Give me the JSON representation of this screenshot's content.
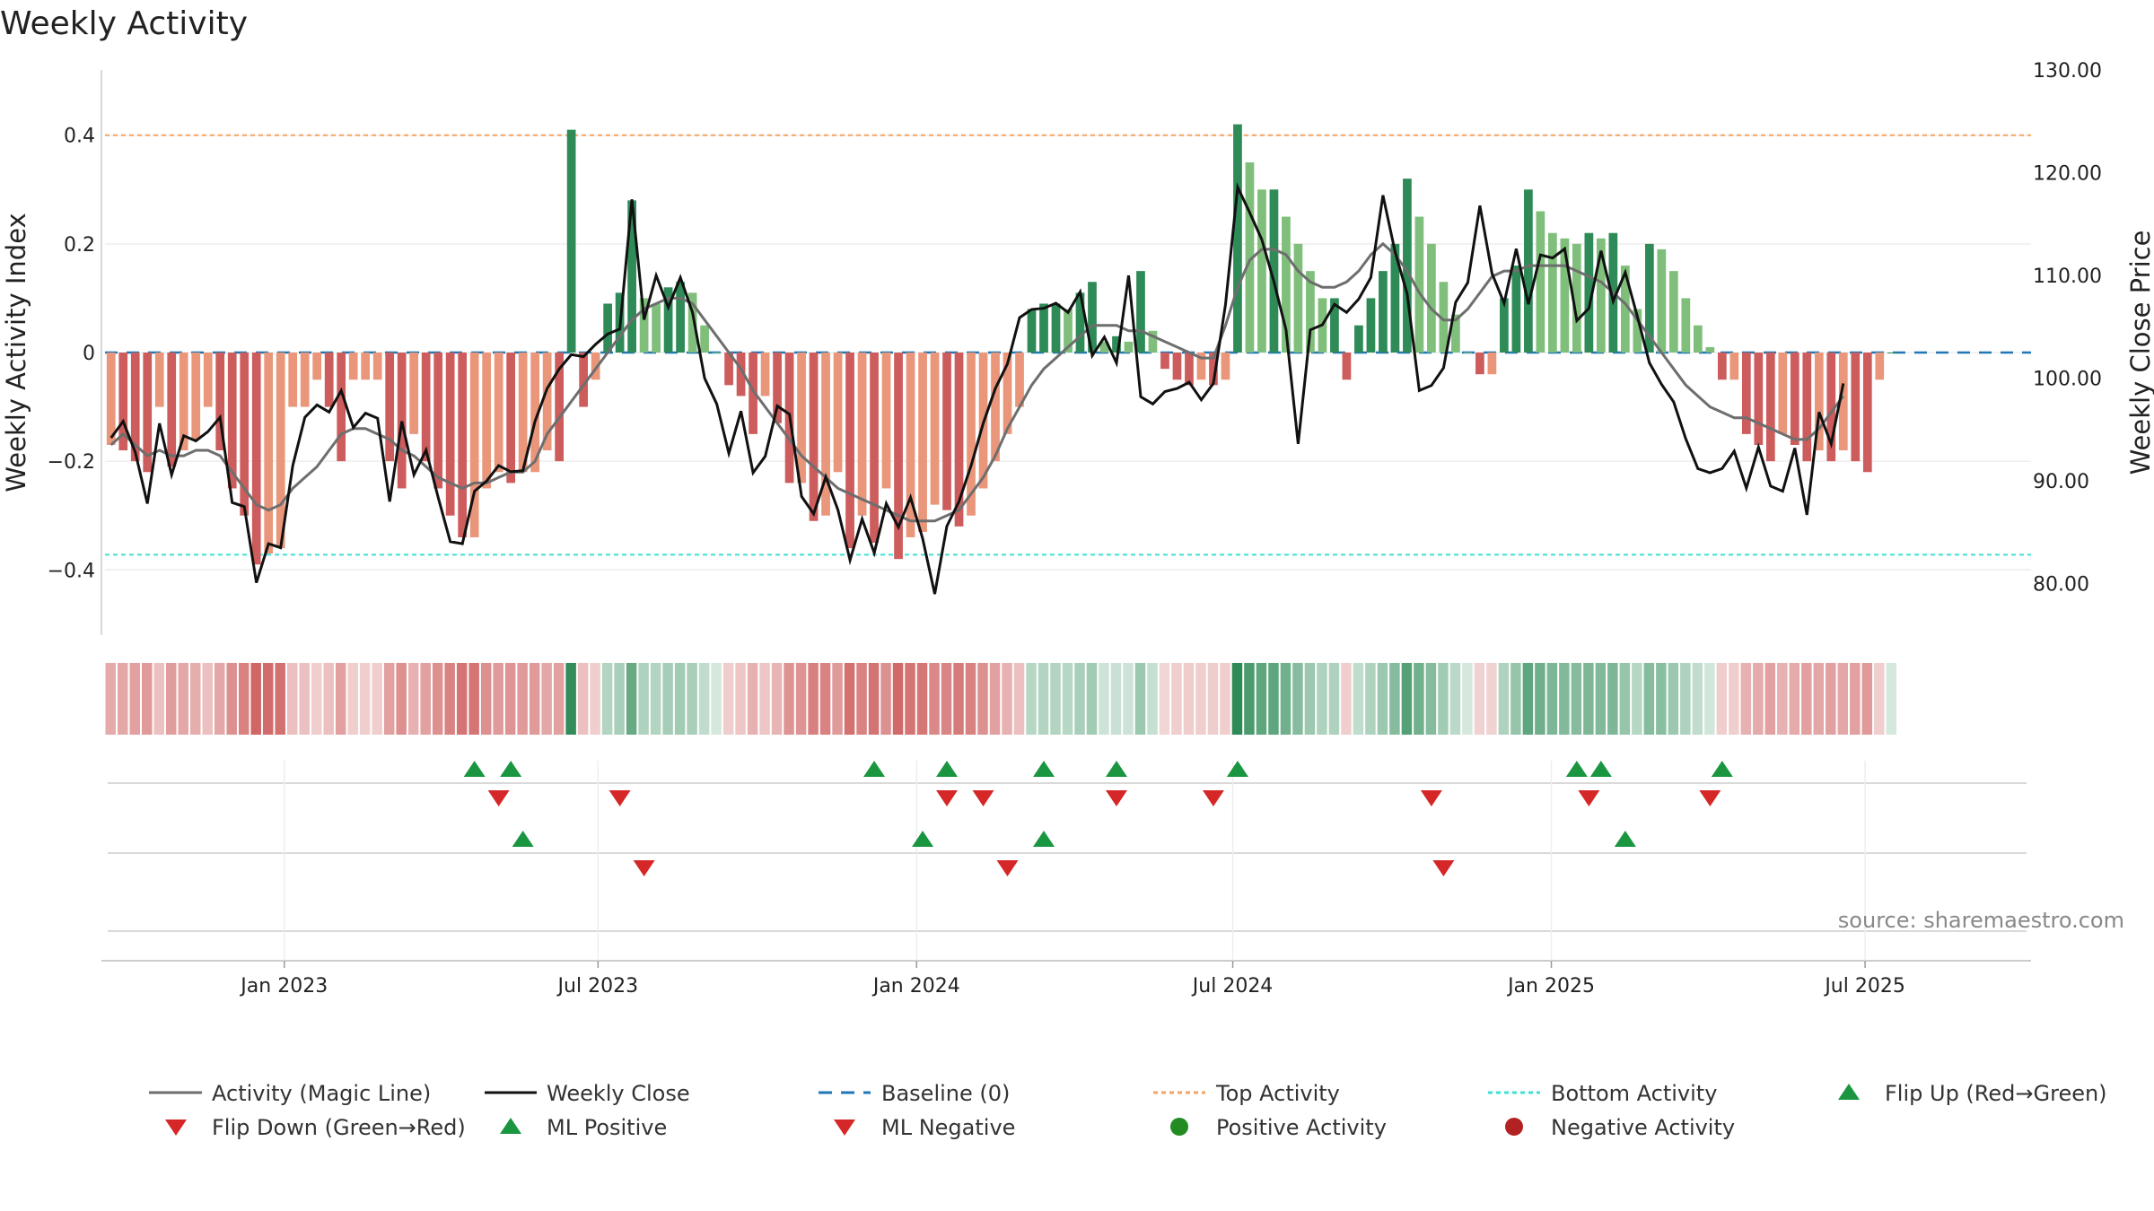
{
  "chart_data": {
    "type": "bar",
    "title": "Weekly Activity",
    "ylabel_left": "Weekly Activity Index",
    "ylabel_right": "Weekly Close Price",
    "ylim_left": [
      -0.52,
      0.52
    ],
    "ylim_right": [
      75,
      130
    ],
    "yticks_left": [
      {
        "v": 0.4,
        "t": "0.4"
      },
      {
        "v": 0.2,
        "t": "0.2"
      },
      {
        "v": 0,
        "t": "0"
      },
      {
        "v": -0.2,
        "t": "−0.2"
      },
      {
        "v": -0.4,
        "t": "−0.4"
      }
    ],
    "yticks_right": [
      {
        "v": 130,
        "t": "130.00"
      },
      {
        "v": 120,
        "t": "120.00"
      },
      {
        "v": 110,
        "t": "110.00"
      },
      {
        "v": 100,
        "t": "100.00"
      },
      {
        "v": 90,
        "t": "90.00"
      },
      {
        "v": 80,
        "t": "80.00"
      }
    ],
    "x_range_weeks": [
      0,
      158
    ],
    "xticks": [
      {
        "w": 14.3,
        "t": "Jan 2023"
      },
      {
        "w": 40.2,
        "t": "Jul 2023"
      },
      {
        "w": 66.5,
        "t": "Jan 2024"
      },
      {
        "w": 92.6,
        "t": "Jul 2024"
      },
      {
        "w": 118.9,
        "t": "Jan 2025"
      },
      {
        "w": 144.8,
        "t": "Jul 2025"
      }
    ],
    "top_activity": 0.4,
    "bottom_activity": -0.372,
    "baseline": 0,
    "activity": [
      -0.17,
      -0.18,
      -0.2,
      -0.22,
      -0.1,
      -0.21,
      -0.18,
      -0.16,
      -0.1,
      -0.18,
      -0.25,
      -0.3,
      -0.39,
      -0.37,
      -0.36,
      -0.1,
      -0.1,
      -0.05,
      -0.1,
      -0.2,
      -0.05,
      -0.05,
      -0.05,
      -0.2,
      -0.25,
      -0.15,
      -0.2,
      -0.25,
      -0.3,
      -0.34,
      -0.34,
      -0.25,
      -0.22,
      -0.24,
      -0.22,
      -0.22,
      -0.18,
      -0.2,
      0.41,
      -0.1,
      -0.05,
      0.09,
      0.11,
      0.28,
      0.1,
      0.09,
      0.12,
      0.13,
      0.11,
      0.05,
      0.0,
      -0.06,
      -0.08,
      -0.15,
      -0.08,
      -0.13,
      -0.24,
      -0.24,
      -0.31,
      -0.3,
      -0.22,
      -0.36,
      -0.3,
      -0.35,
      -0.25,
      -0.38,
      -0.34,
      -0.33,
      -0.28,
      -0.29,
      -0.32,
      -0.3,
      -0.25,
      -0.2,
      -0.15,
      -0.1,
      0.08,
      0.09,
      0.09,
      0.08,
      0.11,
      0.13,
      0.02,
      0.03,
      0.02,
      0.15,
      0.04,
      -0.03,
      -0.05,
      -0.06,
      -0.05,
      -0.06,
      -0.05,
      0.42,
      0.35,
      0.3,
      0.3,
      0.25,
      0.2,
      0.15,
      0.1,
      0.1,
      -0.05,
      0.05,
      0.1,
      0.15,
      0.2,
      0.32,
      0.25,
      0.2,
      0.13,
      0.07,
      0.0,
      -0.04,
      -0.04,
      0.1,
      0.16,
      0.3,
      0.26,
      0.22,
      0.21,
      0.2,
      0.22,
      0.21,
      0.22,
      0.16,
      0.08,
      0.2,
      0.19,
      0.15,
      0.1,
      0.05,
      0.01,
      -0.05,
      -0.05,
      -0.15,
      -0.17,
      -0.2,
      -0.15,
      -0.17,
      -0.2,
      -0.18,
      -0.2,
      -0.18,
      -0.2,
      -0.22,
      -0.05,
      0.0
    ],
    "weekly_close": [
      94.2,
      95.8,
      92.8,
      87.8,
      95.6,
      90.6,
      94.4,
      93.9,
      94.8,
      96.2,
      87.9,
      87.5,
      80.1,
      83.9,
      83.5,
      91.5,
      96.2,
      97.4,
      96.7,
      98.8,
      95.2,
      96.6,
      96.1,
      88.0,
      95.8,
      90.6,
      93.0,
      88.4,
      84.1,
      83.9,
      89.0,
      90.0,
      91.5,
      90.9,
      91.0,
      95.8,
      99.0,
      100.9,
      102.3,
      102.1,
      103.3,
      104.3,
      104.8,
      117.4,
      105.7,
      110.0,
      106.9,
      109.8,
      106.4,
      100.0,
      97.5,
      92.7,
      96.8,
      90.8,
      92.4,
      97.3,
      96.5,
      88.5,
      86.8,
      90.4,
      87.2,
      82.3,
      86.3,
      83.0,
      87.8,
      85.5,
      88.4,
      84.4,
      79.0,
      85.6,
      88.0,
      91.5,
      95.6,
      99.0,
      101.4,
      105.9,
      106.7,
      106.8,
      107.3,
      106.4,
      108.4,
      102.2,
      104.0,
      101.5,
      110.0,
      98.2,
      97.5,
      98.7,
      99.0,
      99.6,
      97.9,
      99.5,
      107.2,
      118.6,
      116.1,
      113.5,
      109.4,
      104.7,
      93.6,
      104.7,
      105.2,
      107.2,
      106.4,
      107.7,
      109.8,
      117.8,
      112.3,
      108.2,
      98.8,
      99.3,
      101.0,
      107.4,
      109.3,
      116.8,
      110.2,
      107.3,
      112.6,
      107.2,
      112.0,
      111.7,
      112.6,
      105.6,
      106.8,
      112.4,
      107.5,
      110.3,
      106.0,
      101.5,
      99.4,
      97.7,
      94.1,
      91.2,
      90.8,
      91.2,
      92.9,
      89.3,
      93.3,
      89.5,
      89.0,
      93.2,
      86.7,
      96.7,
      93.6,
      99.5
    ],
    "magic_line": [
      -0.17,
      -0.15,
      -0.17,
      -0.19,
      -0.18,
      -0.19,
      -0.19,
      -0.18,
      -0.18,
      -0.19,
      -0.22,
      -0.25,
      -0.28,
      -0.29,
      -0.28,
      -0.25,
      -0.23,
      -0.21,
      -0.18,
      -0.15,
      -0.14,
      -0.14,
      -0.15,
      -0.16,
      -0.18,
      -0.19,
      -0.21,
      -0.23,
      -0.24,
      -0.25,
      -0.24,
      -0.24,
      -0.23,
      -0.22,
      -0.22,
      -0.2,
      -0.15,
      -0.12,
      -0.09,
      -0.06,
      -0.03,
      0.0,
      0.03,
      0.06,
      0.08,
      0.09,
      0.1,
      0.1,
      0.09,
      0.06,
      0.03,
      0.0,
      -0.03,
      -0.07,
      -0.1,
      -0.13,
      -0.16,
      -0.19,
      -0.21,
      -0.23,
      -0.25,
      -0.26,
      -0.27,
      -0.28,
      -0.29,
      -0.3,
      -0.31,
      -0.31,
      -0.31,
      -0.3,
      -0.29,
      -0.26,
      -0.23,
      -0.19,
      -0.14,
      -0.1,
      -0.06,
      -0.03,
      -0.01,
      0.01,
      0.03,
      0.05,
      0.05,
      0.05,
      0.04,
      0.04,
      0.03,
      0.02,
      0.01,
      0.0,
      -0.01,
      -0.01,
      0.05,
      0.12,
      0.17,
      0.19,
      0.19,
      0.18,
      0.15,
      0.13,
      0.12,
      0.12,
      0.13,
      0.15,
      0.18,
      0.2,
      0.18,
      0.15,
      0.11,
      0.08,
      0.06,
      0.06,
      0.08,
      0.11,
      0.14,
      0.15,
      0.15,
      0.16,
      0.16,
      0.16,
      0.16,
      0.15,
      0.14,
      0.13,
      0.11,
      0.09,
      0.06,
      0.03,
      0.0,
      -0.03,
      -0.06,
      -0.08,
      -0.1,
      -0.11,
      -0.12,
      -0.12,
      -0.13,
      -0.14,
      -0.15,
      -0.16,
      -0.16,
      -0.14,
      -0.11,
      -0.08
    ],
    "flip_up_weeks": [
      30,
      33,
      63,
      69,
      77,
      83,
      93,
      121,
      123,
      133
    ],
    "flip_down_weeks": [
      32,
      42,
      69,
      72,
      83,
      91,
      109,
      122,
      132
    ],
    "ml_positive_weeks": [
      34,
      67,
      77,
      125
    ],
    "ml_negative_weeks": [
      44,
      74,
      110
    ],
    "legend": [
      "Activity (Magic Line)",
      "Weekly Close",
      "Baseline (0)",
      "Top Activity",
      "Bottom Activity",
      "Flip Up (Red→Green)",
      "Flip Down (Green→Red)",
      "ML Positive",
      "ML Negative",
      "Positive Activity",
      "Negative Activity"
    ],
    "source": "source: sharemaestro.com"
  },
  "colors": {
    "pos_dark": "#2e8b57",
    "pos_light": "#7fbf7b",
    "neg_dark": "#cd5c5c",
    "neg_light": "#e9967a",
    "close": "#111111",
    "magic": "#6e6e6e",
    "baseline": "#1f77b4",
    "top": "#f4a460",
    "bottom": "#40e0d0",
    "flip_up": "#1a9641",
    "flip_down": "#d62728",
    "pos_dot": "#228b22",
    "neg_dot": "#b22222"
  }
}
